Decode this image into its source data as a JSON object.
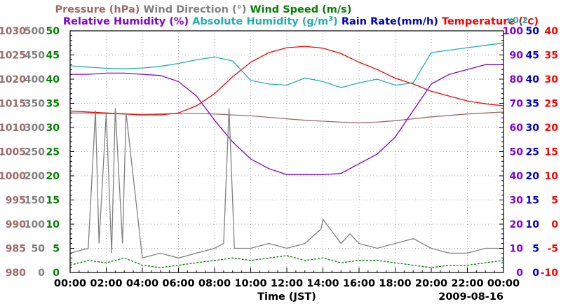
{
  "chart_data": {
    "type": "line",
    "date": "2009-08-16",
    "x_axis": {
      "label": "Time (JST)",
      "range": [
        0,
        24
      ],
      "ticks": [
        "00:00",
        "02:00",
        "04:00",
        "06:00",
        "08:00",
        "10:00",
        "12:00",
        "14:00",
        "16:00",
        "18:00",
        "20:00",
        "22:00",
        "00:00"
      ]
    },
    "legend_row1": [
      {
        "key": "pressure",
        "label": "Pressure (hPa)",
        "color": "#a06868"
      },
      {
        "key": "wind_direction",
        "label": "Wind Direction (°)",
        "color": "#808080"
      },
      {
        "key": "wind_speed",
        "label": "Wind Speed (m/s)",
        "color": "#008000"
      }
    ],
    "legend_row2": [
      {
        "key": "relative_humidity",
        "label": "Relative Humidity (%)",
        "color": "#8000e0"
      },
      {
        "key": "abs_humidity_a",
        "label": "Absolute Humidity (g/m",
        "color": "#20b0b0"
      },
      {
        "key": "abs_humidity_sup",
        "label": "3",
        "color": "#20b0b0"
      },
      {
        "key": "abs_humidity_b",
        "label": ")",
        "color": "#20b0b0"
      },
      {
        "key": "rain_rate",
        "label": "Rain Rate(mm/h)",
        "color": "#0000c0"
      },
      {
        "key": "temperature_a",
        "label": "Temperature (",
        "color": "#ff0000"
      },
      {
        "key": "temperature_deg",
        "label": "°C",
        "color": "#ff0000"
      },
      {
        "key": "temperature_b",
        "label": ")",
        "color": "#ff0000"
      }
    ],
    "scale_note": {
      "label": "x0.2",
      "color": "#20b0b0"
    },
    "axes": {
      "pressure": {
        "ticks": [
          "980",
          "985",
          "990",
          "995",
          "1000",
          "1005",
          "1010",
          "1015",
          "1020",
          "1025",
          "1030"
        ],
        "range": [
          980,
          1030
        ],
        "color": "#a06868"
      },
      "wind_direction": {
        "ticks": [
          "0",
          "50",
          "100",
          "150",
          "200",
          "250",
          "300",
          "350",
          "400",
          "450",
          "500"
        ],
        "range": [
          0,
          500
        ],
        "color": "#808080"
      },
      "wind_speed": {
        "ticks": [
          "0",
          "5",
          "10",
          "15",
          "20",
          "25",
          "30",
          "35",
          "40",
          "45",
          "50"
        ],
        "range": [
          0,
          50
        ],
        "color": "#008000"
      },
      "relative_humidity": {
        "ticks": [
          "0",
          "10",
          "20",
          "30",
          "40",
          "50",
          "60",
          "70",
          "80",
          "90",
          "100"
        ],
        "range": [
          0,
          100
        ],
        "color": "#8000e0"
      },
      "rain_rate": {
        "ticks": [
          "0",
          "5",
          "10",
          "15",
          "20",
          "25",
          "30",
          "35",
          "40",
          "45",
          "50"
        ],
        "range": [
          0,
          50
        ],
        "color": "#0000c0"
      },
      "temperature": {
        "ticks": [
          "-10",
          "-5",
          "0",
          "5",
          "10",
          "15",
          "20",
          "25",
          "30",
          "35",
          "40"
        ],
        "range": [
          -10,
          40
        ],
        "color": "#ff0000"
      }
    },
    "series": [
      {
        "name": "Pressure (hPa)",
        "axis": "pressure",
        "color": "#a06868",
        "x": [
          0,
          1,
          2,
          3,
          4,
          5,
          6,
          7,
          8,
          9,
          10,
          11,
          12,
          13,
          14,
          15,
          16,
          17,
          18,
          19,
          20,
          21,
          22,
          23,
          24
        ],
        "y": [
          1013,
          1013,
          1012.9,
          1012.8,
          1012.7,
          1012.8,
          1012.9,
          1012.9,
          1012.8,
          1012.6,
          1012.4,
          1012.1,
          1011.8,
          1011.5,
          1011.3,
          1011.1,
          1011.0,
          1011.1,
          1011.4,
          1011.8,
          1012.2,
          1012.5,
          1012.8,
          1013.0,
          1013.2
        ]
      },
      {
        "name": "Temperature (°C)",
        "axis": "temperature",
        "color": "#ff0000",
        "x": [
          0,
          1,
          2,
          3,
          4,
          5,
          6,
          7,
          8,
          9,
          10,
          11,
          12,
          13,
          14,
          15,
          16,
          17,
          18,
          19,
          20,
          21,
          22,
          23,
          24
        ],
        "y": [
          23.4,
          23.2,
          23.0,
          22.8,
          22.6,
          22.6,
          23.0,
          24.5,
          27.0,
          30.5,
          33.5,
          35.5,
          36.5,
          36.8,
          36.4,
          35.3,
          33.5,
          32.0,
          30.2,
          29.0,
          27.5,
          26.5,
          25.5,
          24.9,
          24.5
        ]
      },
      {
        "name": "Absolute Humidity (g/m3) x0.2",
        "axis": "relative_humidity",
        "color": "#20b0b0",
        "x": [
          0,
          1,
          2,
          3,
          4,
          5,
          6,
          7,
          8,
          9,
          10,
          11,
          12,
          13,
          14,
          15,
          16,
          17,
          18,
          19,
          20,
          21,
          22,
          23,
          24
        ],
        "y": [
          85.5,
          85.0,
          84.5,
          84.3,
          84.6,
          85.3,
          86.5,
          88.0,
          89.2,
          87.5,
          79.5,
          78.0,
          77.5,
          80.5,
          79.0,
          76.5,
          78.5,
          80.0,
          77.5,
          78.5,
          91.0,
          92.0,
          93.0,
          94.0,
          95.0
        ]
      },
      {
        "name": "Relative Humidity (%)",
        "axis": "relative_humidity",
        "color": "#8000e0",
        "x": [
          0,
          1,
          2,
          3,
          4,
          5,
          6,
          7,
          8,
          9,
          10,
          11,
          12,
          13,
          14,
          15,
          16,
          17,
          18,
          19,
          20,
          21,
          22,
          23,
          24
        ],
        "y": [
          82,
          82,
          82.5,
          82.5,
          82,
          81.5,
          79,
          73,
          63,
          54,
          47,
          43,
          40.5,
          40.5,
          40.5,
          41,
          45,
          49,
          56,
          67,
          78,
          82,
          84,
          86,
          86
        ]
      },
      {
        "name": "Wind Speed (m/s)",
        "axis": "wind_speed",
        "color": "#008000",
        "x": [
          0,
          1,
          2,
          3,
          4,
          5,
          6,
          7,
          8,
          9,
          10,
          11,
          12,
          13,
          14,
          15,
          16,
          17,
          18,
          19,
          20,
          21,
          22,
          23,
          24
        ],
        "y": [
          1.5,
          2.5,
          2.0,
          3.0,
          1.5,
          1.0,
          1.5,
          2.0,
          2.5,
          3.0,
          2.5,
          3.0,
          3.5,
          2.5,
          3.0,
          2.0,
          2.5,
          2.5,
          2.0,
          1.5,
          1.0,
          1.5,
          1.5,
          2.0,
          2.5
        ]
      },
      {
        "name": "Wind Direction (°)",
        "axis": "wind_direction",
        "color": "#808080",
        "x": [
          0,
          1,
          1.4,
          1.6,
          2,
          2.3,
          2.5,
          2.9,
          3.1,
          4,
          5,
          6,
          7,
          8,
          8.5,
          8.8,
          9.1,
          10,
          11,
          12,
          13,
          13.9,
          14,
          15,
          15.5,
          16,
          17,
          18,
          19,
          20,
          21,
          22,
          23,
          24
        ],
        "y": [
          40,
          50,
          335,
          60,
          330,
          40,
          340,
          60,
          330,
          30,
          40,
          30,
          40,
          50,
          60,
          340,
          50,
          50,
          60,
          50,
          60,
          90,
          110,
          60,
          80,
          60,
          50,
          60,
          70,
          50,
          40,
          40,
          50,
          50
        ]
      }
    ]
  }
}
